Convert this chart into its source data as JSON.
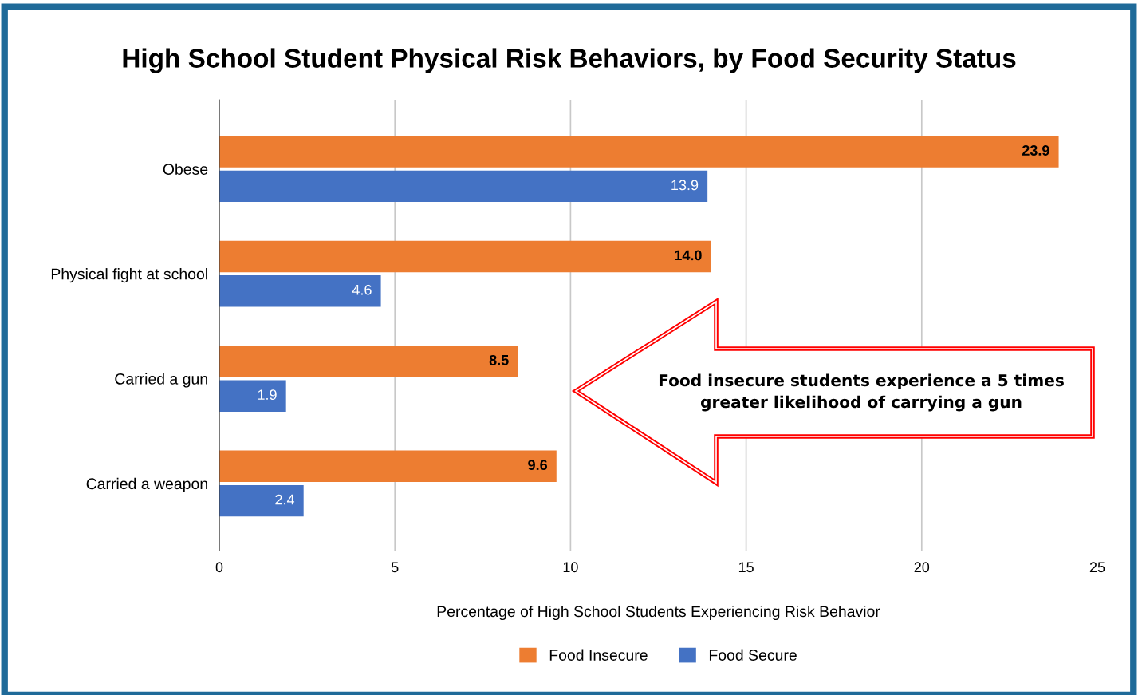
{
  "chart_data": {
    "type": "bar",
    "orientation": "horizontal",
    "title": "High School Student Physical Risk Behaviors, by Food Security Status",
    "xlabel": "Percentage of High School Students Experiencing Risk Behavior",
    "categories": [
      "Obese",
      "Physical fight at school",
      "Carried a gun",
      "Carried a weapon"
    ],
    "series": [
      {
        "name": "Food Insecure",
        "color": "#ed7d31",
        "values": [
          23.9,
          14.0,
          8.5,
          9.6
        ],
        "value_labels": [
          "23.9",
          "14.0",
          "8.5",
          "9.6"
        ]
      },
      {
        "name": "Food Secure",
        "color": "#4472c4",
        "values": [
          13.9,
          4.6,
          1.9,
          2.4
        ],
        "value_labels": [
          "13.9",
          "4.6",
          "1.9",
          "2.4"
        ]
      }
    ],
    "xlim": [
      0,
      25
    ],
    "xticks": [
      0,
      5,
      10,
      15,
      20,
      25
    ],
    "grid": "x",
    "legend": "bottom",
    "annotations": [
      "Food insecure students experience a 5 times\ngreater likelihood of carrying a gun"
    ]
  }
}
